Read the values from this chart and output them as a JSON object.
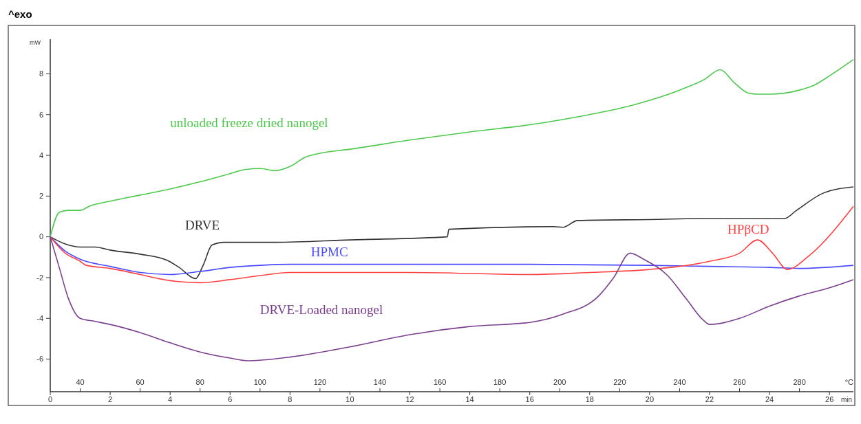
{
  "chart_data": {
    "type": "line",
    "title": "^exo",
    "ylabel": "mW",
    "xlabel": "min",
    "x2label": "°C",
    "xlim": [
      0,
      26.8
    ],
    "xticks": [
      0,
      2,
      4,
      6,
      8,
      10,
      12,
      14,
      16,
      18,
      20,
      22,
      24,
      26
    ],
    "x2lim": [
      30,
      298
    ],
    "x2ticks": [
      40,
      60,
      80,
      100,
      120,
      140,
      160,
      180,
      200,
      220,
      240,
      260,
      280
    ],
    "ylim": [
      -7.6,
      9.7
    ],
    "yticks": [
      -6,
      -4,
      -2,
      0,
      2,
      4,
      6,
      8
    ],
    "grid": false,
    "legend": false,
    "marker": "none",
    "line_style": "solid",
    "series": [
      {
        "name": "unloaded freeze dried nanogel",
        "color": "#4cc94c",
        "x": [
          0,
          0.3,
          0.6,
          1.0,
          1.3,
          2,
          3,
          4,
          5,
          6,
          6.5,
          7,
          7.5,
          8,
          8.5,
          9,
          10,
          12,
          14,
          16,
          18,
          19,
          20,
          21,
          21.8,
          22.36,
          22.8,
          23.3,
          23.6,
          24,
          25,
          25.5,
          26,
          26.8
        ],
        "values": [
          0,
          1.2,
          1.3,
          1.3,
          1.5,
          1.75,
          2.05,
          2.35,
          2.7,
          3.1,
          3.3,
          3.35,
          3.25,
          3.45,
          3.9,
          4.1,
          4.3,
          4.75,
          5.15,
          5.5,
          6.0,
          6.3,
          6.7,
          7.2,
          7.7,
          8.2,
          7.6,
          7.05,
          7.0,
          7.0,
          7.2,
          7.45,
          7.9,
          8.7
        ]
      },
      {
        "name": "DRVE",
        "color": "#333333",
        "x": [
          0,
          0.5,
          1,
          1.5,
          2,
          3,
          3.9,
          4.3,
          4.85,
          5.1,
          5.4,
          5.8,
          7.5,
          10,
          13.25,
          13.3,
          16.8,
          17.1,
          17.6,
          20,
          22,
          24.5,
          24.9,
          25.8,
          26.8
        ],
        "values": [
          0,
          -0.35,
          -0.5,
          -0.5,
          -0.65,
          -0.85,
          -1.15,
          -1.5,
          -2.05,
          -1.4,
          -0.4,
          -0.27,
          -0.27,
          -0.15,
          0,
          0.37,
          0.5,
          0.47,
          0.8,
          0.85,
          0.9,
          0.9,
          1.3,
          2.15,
          2.45
        ]
      },
      {
        "name": "HPMC",
        "color": "#4a4aff",
        "x": [
          0,
          0.5,
          1,
          2,
          3,
          4,
          5,
          6,
          7,
          8,
          12,
          16,
          20,
          22,
          24,
          25,
          26.8
        ],
        "values": [
          0,
          -0.7,
          -1.1,
          -1.45,
          -1.75,
          -1.85,
          -1.7,
          -1.5,
          -1.4,
          -1.35,
          -1.35,
          -1.35,
          -1.4,
          -1.45,
          -1.5,
          -1.55,
          -1.4
        ]
      },
      {
        "name": "HPβCD",
        "color": "#ff4040",
        "x": [
          0,
          0.5,
          1,
          1.2,
          2,
          3,
          4,
          5,
          6,
          7,
          8,
          12,
          16,
          18,
          20,
          21,
          22,
          23,
          23.6,
          24.1,
          24.6,
          25.3,
          26.8
        ],
        "values": [
          0,
          -0.8,
          -1.2,
          -1.4,
          -1.55,
          -1.85,
          -2.15,
          -2.25,
          -2.1,
          -1.9,
          -1.75,
          -1.75,
          -1.85,
          -1.75,
          -1.6,
          -1.45,
          -1.2,
          -0.8,
          -0.15,
          -0.8,
          -1.6,
          -0.95,
          1.5
        ]
      },
      {
        "name": "DRVE-Loaded nanogel",
        "color": "#7a3f8f",
        "x": [
          0,
          0.3,
          0.6,
          1.0,
          1.5,
          2,
          3,
          4,
          5,
          6,
          6.6,
          8,
          10,
          12,
          14,
          16,
          17.1,
          18.3,
          18.8,
          19.35,
          19.8,
          20.6,
          21.2,
          21.8,
          22.0,
          23,
          24,
          25,
          26,
          26.8
        ],
        "values": [
          0,
          -1.5,
          -3.0,
          -4.0,
          -4.15,
          -4.3,
          -4.7,
          -5.2,
          -5.65,
          -5.95,
          -6.08,
          -5.9,
          -5.4,
          -4.8,
          -4.4,
          -4.2,
          -3.8,
          -2.9,
          -2.0,
          -0.8,
          -1.1,
          -1.9,
          -3.0,
          -4.1,
          -4.3,
          -4.0,
          -3.4,
          -2.9,
          -2.5,
          -2.1
        ]
      }
    ]
  }
}
